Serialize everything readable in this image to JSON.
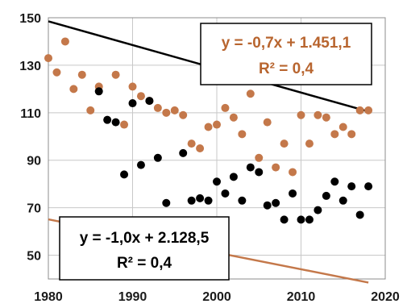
{
  "chart_data": {
    "type": "scatter",
    "xlim": [
      1980,
      2020
    ],
    "ylim": [
      40,
      150
    ],
    "x_ticks": [
      1980,
      1990,
      2000,
      2010,
      2020
    ],
    "y_ticks": [
      50,
      70,
      90,
      110,
      130,
      150
    ],
    "grid": true,
    "series": [
      {
        "color": "#c4784a",
        "points": [
          [
            1980,
            133
          ],
          [
            1981,
            127
          ],
          [
            1982,
            140
          ],
          [
            1983,
            120
          ],
          [
            1984,
            126
          ],
          [
            1985,
            111
          ],
          [
            1986,
            121
          ],
          [
            1988,
            126
          ],
          [
            1989,
            105
          ],
          [
            1990,
            121
          ],
          [
            1991,
            117
          ],
          [
            1992,
            115
          ],
          [
            1993,
            112
          ],
          [
            1994,
            110
          ],
          [
            1995,
            111
          ],
          [
            1996,
            109
          ],
          [
            1997,
            97
          ],
          [
            1998,
            95
          ],
          [
            1999,
            104
          ],
          [
            2000,
            105
          ],
          [
            2001,
            112
          ],
          [
            2002,
            108
          ],
          [
            2003,
            101
          ],
          [
            2004,
            118
          ],
          [
            2005,
            91
          ],
          [
            2006,
            106
          ],
          [
            2007,
            87
          ],
          [
            2008,
            97
          ],
          [
            2009,
            85
          ],
          [
            2010,
            109
          ],
          [
            2011,
            97
          ],
          [
            2012,
            109
          ],
          [
            2013,
            108
          ],
          [
            2014,
            101
          ],
          [
            2015,
            104
          ],
          [
            2016,
            101
          ],
          [
            2017,
            111
          ],
          [
            2018,
            111
          ]
        ],
        "trendline": {
          "slope": -0.7,
          "intercept": 1451.1
        },
        "trend_color": "#c4784a",
        "equation": "y = -0,7x + 1.451,1",
        "r_squared": "R² = 0,4"
      },
      {
        "color": "#000000",
        "points": [
          [
            1986,
            119
          ],
          [
            1987,
            107
          ],
          [
            1988,
            106
          ],
          [
            1989,
            84
          ],
          [
            1990,
            114
          ],
          [
            1991,
            88
          ],
          [
            1992,
            115
          ],
          [
            1993,
            91
          ],
          [
            1994,
            72
          ],
          [
            1996,
            93
          ],
          [
            1997,
            73
          ],
          [
            1998,
            74
          ],
          [
            1999,
            73
          ],
          [
            2000,
            81
          ],
          [
            2001,
            76
          ],
          [
            2002,
            83
          ],
          [
            2003,
            73
          ],
          [
            2004,
            87
          ],
          [
            2005,
            85
          ],
          [
            2006,
            71
          ],
          [
            2007,
            72
          ],
          [
            2008,
            65
          ],
          [
            2009,
            76
          ],
          [
            2010,
            65
          ],
          [
            2011,
            65
          ],
          [
            2012,
            69
          ],
          [
            2013,
            75
          ],
          [
            2014,
            81
          ],
          [
            2015,
            73
          ],
          [
            2016,
            79
          ],
          [
            2017,
            67
          ],
          [
            2018,
            79
          ]
        ],
        "trendline": {
          "slope": -1.0,
          "intercept": 2128.5
        },
        "trend_color": "#000000",
        "equation": "y = -1,0x + 2.128,5",
        "r_squared": "R² = 0,4"
      }
    ]
  }
}
